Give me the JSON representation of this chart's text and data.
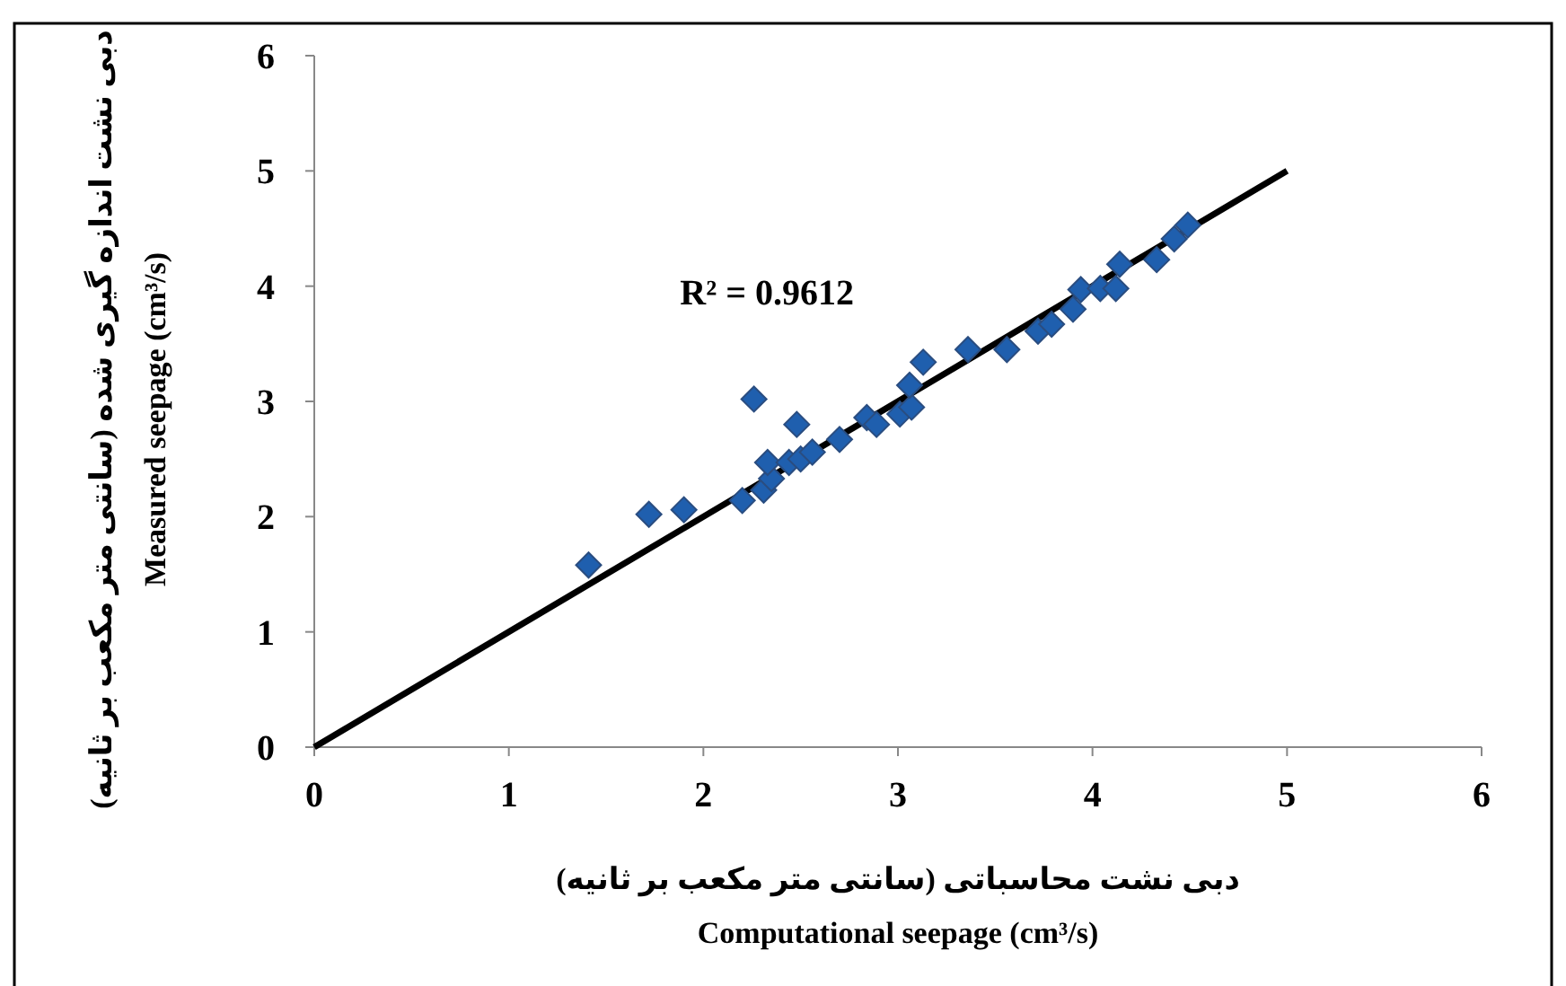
{
  "chart_data": {
    "type": "scatter",
    "xlabel": "دبی نشت محاسباتی (سانتی متر مکعب بر ثانیه)\nComputational seepage (cm³/s)",
    "ylabel": "دبی نشت اندازه گیری شده (سانتی متر مکعب بر ثانیه)\nMeasured seepage (cm³/s)",
    "annotations": [
      "R² = 0.9612"
    ],
    "xlim": [
      0,
      6
    ],
    "ylim": [
      0,
      6
    ],
    "xticks": [
      0,
      1,
      2,
      3,
      4,
      5,
      6
    ],
    "yticks": [
      0,
      1,
      2,
      3,
      4,
      5,
      6
    ],
    "grid": false,
    "series": [
      {
        "marker": "diamond",
        "color": "#1f5fae",
        "x": [
          1.41,
          1.72,
          1.9,
          2.2,
          2.26,
          2.31,
          2.35,
          2.33,
          2.48,
          2.44,
          2.5,
          2.56,
          2.7,
          2.84,
          2.89,
          3.01,
          3.07,
          3.06,
          3.13,
          3.36,
          3.56,
          3.72,
          3.79,
          3.9,
          3.94,
          4.04,
          4.12,
          4.14,
          4.33,
          4.42,
          4.49
        ],
        "values": [
          1.58,
          2.02,
          2.06,
          2.14,
          3.02,
          2.23,
          2.33,
          2.47,
          2.8,
          2.47,
          2.5,
          2.56,
          2.67,
          2.86,
          2.8,
          2.89,
          2.95,
          3.14,
          3.34,
          3.45,
          3.45,
          3.61,
          3.67,
          3.8,
          3.97,
          3.98,
          3.98,
          4.19,
          4.23,
          4.41,
          4.53
        ]
      },
      {
        "type": "line",
        "marker": "none",
        "color": "#000000",
        "x": [
          0,
          5
        ],
        "values": [
          0,
          5
        ]
      }
    ]
  }
}
